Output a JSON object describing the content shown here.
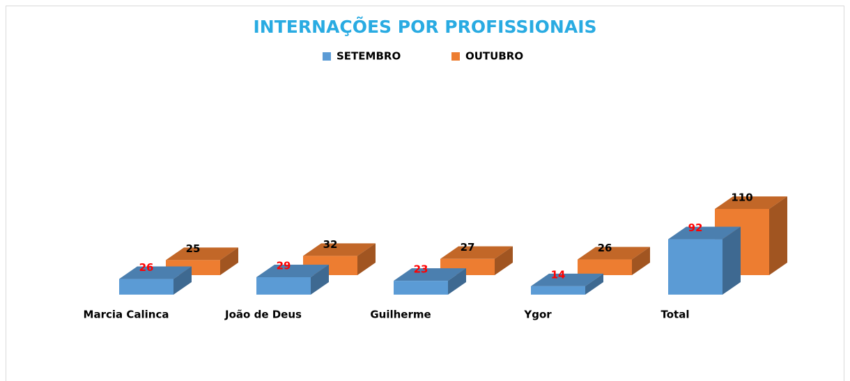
{
  "chart_data": {
    "type": "bar3d",
    "title": "INTERNAÇÕES POR PROFISSIONAIS",
    "categories": [
      "Marcia Calinca",
      "João de Deus",
      "Guilherme",
      "Ygor",
      "Total"
    ],
    "series": [
      {
        "name": "SETEMBRO",
        "color": "#5b9bd5",
        "values": [
          26,
          29,
          23,
          14,
          92
        ]
      },
      {
        "name": "OUTUBRO",
        "color": "#ed7d31",
        "values": [
          25,
          32,
          27,
          26,
          110
        ]
      }
    ],
    "legend": "top"
  }
}
